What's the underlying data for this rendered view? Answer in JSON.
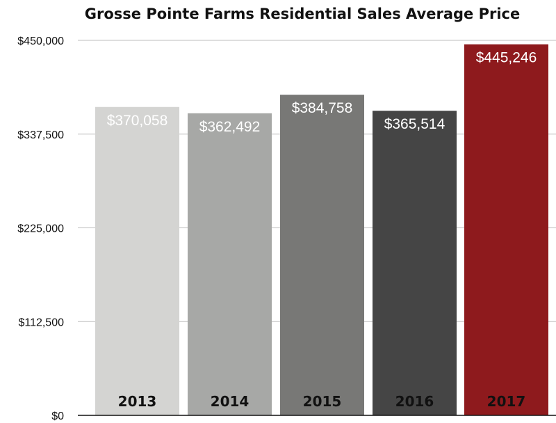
{
  "chart_data": {
    "type": "bar",
    "title": "Grosse Pointe Farms Residential Sales Average Price",
    "xlabel": "",
    "ylabel": "",
    "categories": [
      "2013",
      "2014",
      "2015",
      "2016",
      "2017"
    ],
    "values": [
      370058,
      362492,
      384758,
      365514,
      445246
    ],
    "value_labels": [
      "$370,058",
      "$362,492",
      "$384,758",
      "$365,514",
      "$445,246"
    ],
    "bar_colors": [
      "#d4d4d2",
      "#a7a8a6",
      "#787876",
      "#454545",
      "#8e1a1d"
    ],
    "ylim": [
      0,
      450000
    ],
    "yticks": [
      0,
      112500,
      225000,
      337500,
      450000
    ],
    "ytick_labels": [
      "$0",
      "$112,500",
      "$225,000",
      "$337,500",
      "$450,000"
    ],
    "grid": true,
    "legend": "none"
  }
}
